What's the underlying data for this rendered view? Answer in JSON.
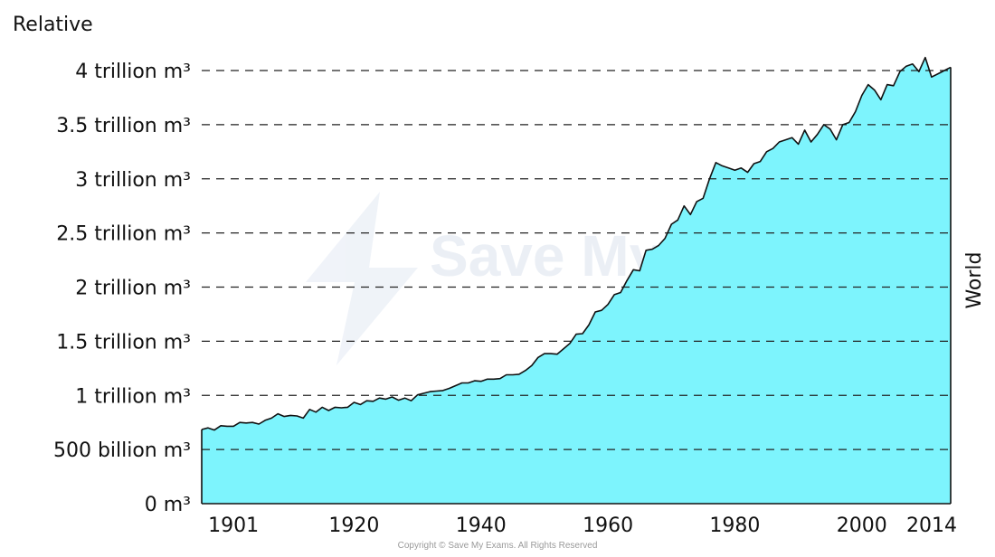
{
  "chart_data": {
    "type": "area",
    "title": "",
    "ylabel": "Relative",
    "series_label": "World",
    "ylim": [
      0,
      4000
    ],
    "xlim": [
      1896,
      2014
    ],
    "y_ticks": [
      {
        "value": 0,
        "label": "0 m³"
      },
      {
        "value": 500,
        "label": "500 billion m³"
      },
      {
        "value": 1000,
        "label": "1 trillion m³"
      },
      {
        "value": 1500,
        "label": "1.5 trillion m³"
      },
      {
        "value": 2000,
        "label": "2 trillion m³"
      },
      {
        "value": 2500,
        "label": "2.5 trillion m³"
      },
      {
        "value": 3000,
        "label": "3 trillion m³"
      },
      {
        "value": 3500,
        "label": "3.5 trillion m³"
      },
      {
        "value": 4000,
        "label": "4 trillion m³"
      }
    ],
    "x_ticks": [
      {
        "value": 1901,
        "label": "1901"
      },
      {
        "value": 1920,
        "label": "1920"
      },
      {
        "value": 1940,
        "label": "1940"
      },
      {
        "value": 1960,
        "label": "1960"
      },
      {
        "value": 1980,
        "label": "1980"
      },
      {
        "value": 2000,
        "label": "2000"
      },
      {
        "value": 2014,
        "label": "2014"
      }
    ],
    "grid": "horizontal-dashed",
    "colors": {
      "fill": "#7df4fd",
      "line": "#111111",
      "grid": "#222222"
    },
    "x": [
      1896,
      1897,
      1898,
      1899,
      1900,
      1901,
      1902,
      1903,
      1904,
      1905,
      1906,
      1907,
      1908,
      1909,
      1910,
      1911,
      1912,
      1913,
      1914,
      1915,
      1916,
      1917,
      1918,
      1919,
      1920,
      1921,
      1922,
      1923,
      1924,
      1925,
      1926,
      1927,
      1928,
      1929,
      1930,
      1931,
      1932,
      1933,
      1934,
      1935,
      1936,
      1937,
      1938,
      1939,
      1940,
      1941,
      1942,
      1943,
      1944,
      1945,
      1946,
      1947,
      1948,
      1949,
      1950,
      1951,
      1952,
      1953,
      1954,
      1955,
      1956,
      1957,
      1958,
      1959,
      1960,
      1961,
      1962,
      1963,
      1964,
      1965,
      1966,
      1967,
      1968,
      1969,
      1970,
      1971,
      1972,
      1973,
      1974,
      1975,
      1976,
      1977,
      1978,
      1979,
      1980,
      1981,
      1982,
      1983,
      1984,
      1985,
      1986,
      1987,
      1988,
      1989,
      1990,
      1991,
      1992,
      1993,
      1994,
      1995,
      1996,
      1997,
      1998,
      1999,
      2000,
      2001,
      2002,
      2003,
      2004,
      2005,
      2006,
      2007,
      2008,
      2009,
      2010,
      2011,
      2012,
      2013,
      2014
    ],
    "values": [
      685,
      700,
      680,
      720,
      715,
      715,
      750,
      745,
      750,
      735,
      770,
      790,
      830,
      805,
      815,
      810,
      790,
      870,
      845,
      890,
      860,
      890,
      885,
      890,
      935,
      915,
      950,
      945,
      975,
      965,
      985,
      955,
      975,
      950,
      1005,
      1020,
      1035,
      1040,
      1045,
      1065,
      1090,
      1115,
      1115,
      1135,
      1130,
      1150,
      1150,
      1155,
      1190,
      1190,
      1195,
      1230,
      1275,
      1350,
      1385,
      1385,
      1380,
      1430,
      1480,
      1565,
      1570,
      1650,
      1770,
      1785,
      1840,
      1930,
      1950,
      2060,
      2160,
      2150,
      2340,
      2350,
      2385,
      2450,
      2580,
      2620,
      2750,
      2670,
      2790,
      2820,
      3000,
      3150,
      3120,
      3100,
      3080,
      3100,
      3060,
      3140,
      3160,
      3250,
      3280,
      3340,
      3360,
      3380,
      3320,
      3450,
      3340,
      3410,
      3500,
      3460,
      3360,
      3500,
      3520,
      3620,
      3770,
      3870,
      3820,
      3730,
      3870,
      3860,
      3990,
      4040,
      4060,
      3990,
      4120,
      3940,
      3970,
      4000,
      4030
    ]
  },
  "copyright": "Copyright © Save My Exams. All Rights Reserved",
  "watermark": "Save My Exams"
}
